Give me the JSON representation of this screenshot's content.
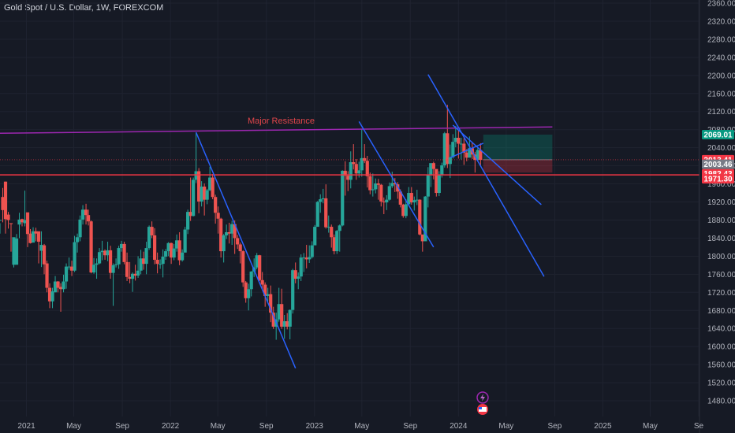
{
  "header": {
    "symbol_title": "Gold Spot / U.S. Dollar, 1W, FOREXCOM"
  },
  "colors": {
    "background": "#161a25",
    "grid": "#1f2330",
    "up": "#26a69a",
    "down": "#ef5350",
    "trendline": "#2962ff",
    "resistance_line": "#9c27b0",
    "support_line": "#f23645",
    "axis_text": "#b2b5be",
    "price_tag_green": "#089981",
    "price_tag_red": "#f23645",
    "price_tag_gray": "#787b86"
  },
  "chart_data": {
    "type": "candlestick",
    "title": "",
    "ylim": [
      1440,
      2380
    ],
    "y_ticks": [
      "2360.00",
      "2320.00",
      "2280.00",
      "2240.00",
      "2200.00",
      "2160.00",
      "2120.00",
      "2080.00",
      "2040.00",
      "2000.00",
      "1960.00",
      "1920.00",
      "1880.00",
      "1840.00",
      "1800.00",
      "1760.00",
      "1720.00",
      "1680.00",
      "1640.00",
      "1600.00",
      "1560.00",
      "1520.00",
      "1480.00"
    ],
    "x_ticks": [
      "2021",
      "May",
      "Sep",
      "2022",
      "May",
      "Sep",
      "2023",
      "May",
      "Sep",
      "2024",
      "May",
      "Sep",
      "2025",
      "May",
      "Se"
    ],
    "x_range": [
      "2020-10-26",
      "2025-09-15"
    ],
    "price_labels": [
      {
        "text": "2069.01",
        "value": 2069.01,
        "style": "green"
      },
      {
        "text": "2013.41",
        "value": 2013.41,
        "style": "red"
      },
      {
        "text": "2003.46",
        "value": 2003.46,
        "style": "gray"
      },
      {
        "text": "1982.43",
        "value": 1982.43,
        "style": "red"
      },
      {
        "text": "1971.30",
        "value": 1971.3,
        "style": "red"
      }
    ],
    "annotations": [
      {
        "text": "Major Resistance"
      }
    ],
    "horizontal_lines": [
      {
        "name": "support",
        "value": 1980
      }
    ],
    "resistance_line": {
      "from": [
        "2020-10-26",
        2072
      ],
      "to": [
        "2024-08-26",
        2086
      ]
    },
    "trendlines": [
      {
        "from": [
          "2022-03-07",
          2074
        ],
        "to": [
          "2022-11-14",
          1552
        ]
      },
      {
        "from": [
          "2023-04-24",
          2098
        ],
        "to": [
          "2023-10-30",
          1820
        ]
      },
      {
        "from": [
          "2023-10-16",
          2202
        ],
        "to": [
          "2024-08-05",
          1755
        ]
      },
      {
        "from": [
          "2023-12-18",
          2090
        ],
        "to": [
          "2024-07-29",
          1914
        ]
      },
      {
        "from": [
          "2023-12-11",
          2018
        ],
        "to": [
          "2024-03-04",
          2050
        ]
      }
    ],
    "position_box": {
      "start": "2024-03-04",
      "end": "2024-08-26",
      "entry": 2013.41,
      "target": 2069.01,
      "stop": 1985
    },
    "candles": [
      [
        "2020-10-26",
        1880,
        1880,
        1873,
        1850
      ],
      [
        "2020-11-02",
        1902,
        1931,
        1951,
        1875
      ],
      [
        "2020-11-09",
        1882,
        1965,
        1965,
        1850
      ],
      [
        "2020-11-16",
        1880,
        1892,
        1898,
        1861
      ],
      [
        "2020-11-23",
        1871,
        1873,
        1873,
        1810
      ],
      [
        "2020-11-30",
        1842,
        1781,
        1830,
        1775
      ],
      [
        "2020-12-07",
        1839,
        1781,
        1849,
        1820
      ],
      [
        "2020-12-14",
        1881,
        1870,
        1896,
        1840
      ],
      [
        "2020-12-21",
        1875,
        1882,
        1883,
        1866
      ],
      [
        "2020-12-28",
        1880,
        1873,
        1945,
        1866
      ],
      [
        "2021-01-04",
        1849,
        1897,
        1896,
        1820
      ],
      [
        "2021-01-11",
        1829,
        1850,
        1860,
        1828
      ],
      [
        "2021-01-18",
        1855,
        1830,
        1864,
        1836
      ],
      [
        "2021-01-25",
        1850,
        1855,
        1863,
        1833
      ],
      [
        "2021-02-01",
        1832,
        1855,
        1853,
        1784
      ],
      [
        "2021-02-08",
        1825,
        1812,
        1855,
        1776
      ],
      [
        "2021-02-15",
        1782,
        1824,
        1827,
        1760
      ],
      [
        "2021-02-22",
        1730,
        1784,
        1790,
        1720
      ],
      [
        "2021-03-01",
        1700,
        1730,
        1740,
        1685
      ],
      [
        "2021-03-08",
        1722,
        1700,
        1730,
        1685
      ],
      [
        "2021-03-15",
        1744,
        1720,
        1756,
        1720
      ],
      [
        "2021-03-22",
        1730,
        1744,
        1745,
        1720
      ],
      [
        "2021-03-29",
        1727,
        1732,
        1740,
        1677
      ],
      [
        "2021-04-05",
        1744,
        1727,
        1759,
        1720
      ],
      [
        "2021-04-12",
        1777,
        1744,
        1784,
        1728
      ],
      [
        "2021-04-19",
        1777,
        1777,
        1797,
        1770
      ],
      [
        "2021-04-26",
        1768,
        1777,
        1790,
        1756
      ],
      [
        "2021-05-03",
        1831,
        1768,
        1845,
        1765
      ],
      [
        "2021-05-10",
        1842,
        1831,
        1850,
        1808
      ],
      [
        "2021-05-17",
        1881,
        1842,
        1890,
        1833
      ],
      [
        "2021-05-24",
        1903,
        1881,
        1913,
        1870
      ],
      [
        "2021-06-01",
        1891,
        1903,
        1916,
        1870
      ],
      [
        "2021-06-07",
        1877,
        1891,
        1903,
        1868
      ],
      [
        "2021-06-14",
        1764,
        1877,
        1879,
        1762
      ],
      [
        "2021-06-21",
        1781,
        1764,
        1796,
        1761
      ],
      [
        "2021-06-28",
        1784,
        1781,
        1795,
        1750
      ],
      [
        "2021-07-05",
        1809,
        1784,
        1818,
        1782
      ],
      [
        "2021-07-12",
        1812,
        1809,
        1834,
        1791
      ],
      [
        "2021-07-19",
        1802,
        1812,
        1815,
        1792
      ],
      [
        "2021-07-26",
        1813,
        1802,
        1832,
        1789
      ],
      [
        "2021-08-02",
        1763,
        1813,
        1823,
        1750
      ],
      [
        "2021-08-09",
        1780,
        1763,
        1784,
        1690
      ],
      [
        "2021-08-16",
        1782,
        1780,
        1795,
        1775
      ],
      [
        "2021-08-23",
        1818,
        1782,
        1823,
        1772
      ],
      [
        "2021-08-30",
        1827,
        1818,
        1834,
        1810
      ],
      [
        "2021-09-06",
        1787,
        1827,
        1832,
        1782
      ],
      [
        "2021-09-13",
        1754,
        1787,
        1808,
        1745
      ],
      [
        "2021-09-20",
        1750,
        1754,
        1787,
        1740
      ],
      [
        "2021-09-27",
        1761,
        1750,
        1764,
        1721
      ],
      [
        "2021-10-04",
        1757,
        1761,
        1781,
        1746
      ],
      [
        "2021-10-11",
        1768,
        1757,
        1800,
        1752
      ],
      [
        "2021-10-18",
        1795,
        1768,
        1814,
        1760
      ],
      [
        "2021-10-25",
        1783,
        1795,
        1810,
        1770
      ],
      [
        "2021-11-01",
        1818,
        1783,
        1832,
        1760
      ],
      [
        "2021-11-08",
        1865,
        1818,
        1868,
        1814
      ],
      [
        "2021-11-15",
        1846,
        1865,
        1877,
        1840
      ],
      [
        "2021-11-22",
        1792,
        1846,
        1862,
        1782
      ],
      [
        "2021-11-29",
        1783,
        1792,
        1808,
        1762
      ],
      [
        "2021-12-06",
        1783,
        1783,
        1793,
        1772
      ],
      [
        "2021-12-13",
        1799,
        1783,
        1815,
        1753
      ],
      [
        "2021-12-20",
        1811,
        1799,
        1816,
        1792
      ],
      [
        "2021-12-27",
        1829,
        1811,
        1831,
        1800
      ],
      [
        "2022-01-03",
        1797,
        1829,
        1830,
        1783
      ],
      [
        "2022-01-10",
        1817,
        1797,
        1827,
        1791
      ],
      [
        "2022-01-17",
        1835,
        1817,
        1848,
        1810
      ],
      [
        "2022-01-24",
        1791,
        1835,
        1853,
        1780
      ],
      [
        "2022-01-31",
        1808,
        1791,
        1815,
        1788
      ],
      [
        "2022-02-07",
        1859,
        1808,
        1865,
        1808
      ],
      [
        "2022-02-14",
        1898,
        1859,
        1903,
        1849
      ],
      [
        "2022-02-21",
        1889,
        1898,
        1974,
        1878
      ],
      [
        "2022-02-28",
        1969,
        1889,
        1974,
        1888
      ],
      [
        "2022-03-07",
        1988,
        1969,
        2074,
        1962
      ],
      [
        "2022-03-14",
        1921,
        1988,
        1995,
        1895
      ],
      [
        "2022-03-21",
        1954,
        1921,
        1966,
        1910
      ],
      [
        "2022-03-28",
        1925,
        1954,
        1961,
        1890
      ],
      [
        "2022-04-04",
        1946,
        1925,
        1949,
        1915
      ],
      [
        "2022-04-11",
        1974,
        1946,
        1998,
        1944
      ],
      [
        "2022-04-18",
        1931,
        1974,
        1982,
        1926
      ],
      [
        "2022-04-25",
        1896,
        1931,
        1936,
        1872
      ],
      [
        "2022-05-02",
        1883,
        1896,
        1910,
        1850
      ],
      [
        "2022-05-09",
        1811,
        1883,
        1885,
        1797
      ],
      [
        "2022-05-16",
        1846,
        1811,
        1849,
        1786
      ],
      [
        "2022-05-23",
        1853,
        1846,
        1870,
        1838
      ],
      [
        "2022-05-30",
        1850,
        1853,
        1874,
        1828
      ],
      [
        "2022-06-06",
        1871,
        1850,
        1878,
        1825
      ],
      [
        "2022-06-13",
        1840,
        1871,
        1879,
        1805
      ],
      [
        "2022-06-20",
        1826,
        1840,
        1847,
        1816
      ],
      [
        "2022-06-27",
        1811,
        1826,
        1830,
        1784
      ],
      [
        "2022-07-04",
        1742,
        1811,
        1813,
        1732
      ],
      [
        "2022-07-11",
        1707,
        1742,
        1745,
        1697
      ],
      [
        "2022-07-18",
        1727,
        1707,
        1739,
        1680
      ],
      [
        "2022-07-25",
        1766,
        1727,
        1767,
        1711
      ],
      [
        "2022-08-01",
        1775,
        1766,
        1795,
        1754
      ],
      [
        "2022-08-08",
        1802,
        1775,
        1807,
        1771
      ],
      [
        "2022-08-15",
        1747,
        1802,
        1803,
        1745
      ],
      [
        "2022-08-22",
        1737,
        1747,
        1765,
        1727
      ],
      [
        "2022-08-29",
        1712,
        1737,
        1742,
        1688
      ],
      [
        "2022-09-05",
        1716,
        1712,
        1730,
        1700
      ],
      [
        "2022-09-12",
        1675,
        1716,
        1735,
        1654
      ],
      [
        "2022-09-19",
        1644,
        1675,
        1688,
        1639
      ],
      [
        "2022-09-26",
        1660,
        1644,
        1675,
        1615
      ],
      [
        "2022-10-03",
        1694,
        1660,
        1730,
        1655
      ],
      [
        "2022-10-10",
        1644,
        1694,
        1728,
        1639
      ],
      [
        "2022-10-17",
        1656,
        1644,
        1670,
        1617
      ],
      [
        "2022-10-24",
        1644,
        1656,
        1674,
        1638
      ],
      [
        "2022-10-31",
        1681,
        1644,
        1682,
        1616
      ],
      [
        "2022-11-07",
        1769,
        1681,
        1772,
        1673
      ],
      [
        "2022-11-14",
        1750,
        1769,
        1786,
        1740
      ],
      [
        "2022-11-21",
        1755,
        1750,
        1764,
        1727
      ],
      [
        "2022-11-28",
        1797,
        1755,
        1804,
        1745
      ],
      [
        "2022-12-05",
        1797,
        1797,
        1807,
        1765
      ],
      [
        "2022-12-12",
        1793,
        1797,
        1825,
        1773
      ],
      [
        "2022-12-19",
        1798,
        1793,
        1824,
        1785
      ],
      [
        "2022-12-26",
        1824,
        1798,
        1833,
        1795
      ],
      [
        "2023-01-02",
        1865,
        1824,
        1869,
        1830
      ],
      [
        "2023-01-09",
        1920,
        1865,
        1922,
        1867
      ],
      [
        "2023-01-16",
        1926,
        1920,
        1937,
        1896
      ],
      [
        "2023-01-23",
        1928,
        1926,
        1949,
        1917
      ],
      [
        "2023-01-30",
        1864,
        1928,
        1959,
        1861
      ],
      [
        "2023-02-06",
        1865,
        1864,
        1890,
        1852
      ],
      [
        "2023-02-13",
        1842,
        1865,
        1870,
        1819
      ],
      [
        "2023-02-20",
        1811,
        1842,
        1848,
        1804
      ],
      [
        "2023-02-27",
        1856,
        1811,
        1858,
        1805
      ],
      [
        "2023-03-06",
        1868,
        1856,
        1870,
        1810
      ],
      [
        "2023-03-13",
        1989,
        1868,
        1990,
        1866
      ],
      [
        "2023-03-20",
        1978,
        1989,
        2010,
        1934
      ],
      [
        "2023-03-27",
        1969,
        1978,
        1988,
        1944
      ],
      [
        "2023-04-03",
        2008,
        1969,
        2032,
        1950
      ],
      [
        "2023-04-10",
        2004,
        2008,
        2048,
        1992
      ],
      [
        "2023-04-17",
        1983,
        2004,
        2015,
        1969
      ],
      [
        "2023-04-24",
        1990,
        1983,
        2009,
        1974
      ],
      [
        "2023-05-01",
        2017,
        1990,
        2082,
        1976
      ],
      [
        "2023-05-08",
        2011,
        2017,
        2048,
        2006
      ],
      [
        "2023-05-15",
        1977,
        2011,
        2022,
        1952
      ],
      [
        "2023-05-22",
        1946,
        1977,
        1985,
        1937
      ],
      [
        "2023-05-29",
        1948,
        1946,
        1983,
        1932
      ],
      [
        "2023-06-05",
        1961,
        1948,
        1972,
        1939
      ],
      [
        "2023-06-12",
        1958,
        1961,
        1971,
        1925
      ],
      [
        "2023-06-19",
        1921,
        1958,
        1960,
        1910
      ],
      [
        "2023-06-26",
        1919,
        1921,
        1930,
        1893
      ],
      [
        "2023-07-03",
        1925,
        1919,
        1935,
        1902
      ],
      [
        "2023-07-10",
        1955,
        1925,
        1963,
        1923
      ],
      [
        "2023-07-17",
        1962,
        1955,
        1987,
        1951
      ],
      [
        "2023-07-24",
        1959,
        1962,
        1973,
        1942
      ],
      [
        "2023-07-31",
        1943,
        1959,
        1964,
        1927
      ],
      [
        "2023-08-07",
        1914,
        1943,
        1948,
        1908
      ],
      [
        "2023-08-14",
        1889,
        1914,
        1916,
        1885
      ],
      [
        "2023-08-21",
        1915,
        1889,
        1926,
        1884
      ],
      [
        "2023-08-28",
        1940,
        1915,
        1953,
        1912
      ],
      [
        "2023-09-04",
        1919,
        1940,
        1953,
        1914
      ],
      [
        "2023-09-11",
        1924,
        1919,
        1932,
        1901
      ],
      [
        "2023-09-18",
        1925,
        1924,
        1947,
        1913
      ],
      [
        "2023-09-25",
        1848,
        1925,
        1926,
        1846
      ],
      [
        "2023-10-02",
        1833,
        1848,
        1836,
        1810
      ],
      [
        "2023-10-09",
        1932,
        1833,
        1933,
        1834
      ],
      [
        "2023-10-16",
        1981,
        1932,
        1997,
        1908
      ],
      [
        "2023-10-23",
        2006,
        1981,
        1998,
        1953
      ],
      [
        "2023-10-30",
        1993,
        2006,
        2009,
        1970
      ],
      [
        "2023-11-06",
        1940,
        1993,
        1969,
        1932
      ],
      [
        "2023-11-13",
        1980,
        1940,
        1988,
        1933
      ],
      [
        "2023-11-20",
        2001,
        1980,
        2007,
        1974
      ],
      [
        "2023-11-27",
        2072,
        2001,
        2075,
        1996
      ],
      [
        "2023-12-04",
        2004,
        2072,
        2135,
        1995
      ],
      [
        "2023-12-11",
        2019,
        2004,
        2047,
        1973
      ],
      [
        "2023-12-18",
        2053,
        2019,
        2070,
        2016
      ],
      [
        "2023-12-25",
        2062,
        2053,
        2088,
        2041
      ],
      [
        "2024-01-01",
        2049,
        2062,
        2078,
        2016
      ],
      [
        "2024-01-08",
        2049,
        2049,
        2062,
        2014
      ],
      [
        "2024-01-15",
        2029,
        2049,
        2061,
        2002
      ],
      [
        "2024-01-22",
        2018,
        2029,
        2037,
        2010
      ],
      [
        "2024-01-29",
        2039,
        2018,
        2065,
        2020
      ],
      [
        "2024-02-05",
        2025,
        2039,
        2052,
        2015
      ],
      [
        "2024-02-12",
        2013,
        2025,
        2031,
        1985
      ],
      [
        "2024-02-19",
        2035,
        2013,
        2041,
        2009
      ],
      [
        "2024-02-26",
        2013,
        2035,
        2050,
        2000
      ]
    ]
  }
}
